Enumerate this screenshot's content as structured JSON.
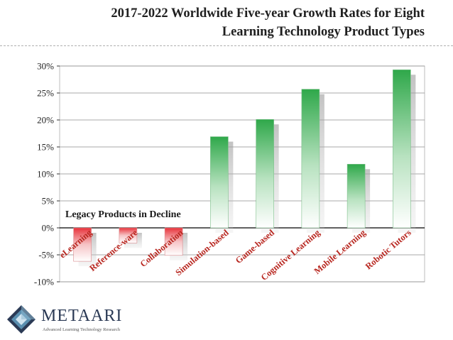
{
  "slide": {
    "title_line1": "2017-2022 Worldwide Five-year Growth Rates for Eight",
    "title_line2": "Learning Technology Product Types"
  },
  "logo": {
    "name": "METAARI",
    "tagline": "Advanced Learning Technology Research"
  },
  "colors": {
    "positive_bar": "#2fa84a",
    "negative_bar": "#e8333b",
    "axis": "#000000"
  },
  "chart_data": {
    "type": "bar",
    "title": "2017-2022 Worldwide Five-year Growth Rates for Eight Learning Technology Product Types",
    "categories": [
      "eLearning",
      "Reference-ware",
      "Collaboration",
      "Simulation-based",
      "Game-based",
      "Cognitive Learning",
      "Mobile Learning",
      "Robotic Tutors"
    ],
    "values": [
      -6.2,
      -2.8,
      -5.1,
      16.9,
      20.1,
      25.7,
      11.8,
      29.3
    ],
    "ylim": [
      -10,
      30
    ],
    "yticks": [
      -10,
      -5,
      0,
      5,
      10,
      15,
      20,
      25,
      30
    ],
    "ytick_labels": [
      "-10%",
      "-5%",
      "0%",
      "5%",
      "10%",
      "15%",
      "20%",
      "25%",
      "30%"
    ],
    "annotation": "Legacy Products in Decline",
    "grid": true,
    "xlabel": "",
    "ylabel": ""
  }
}
